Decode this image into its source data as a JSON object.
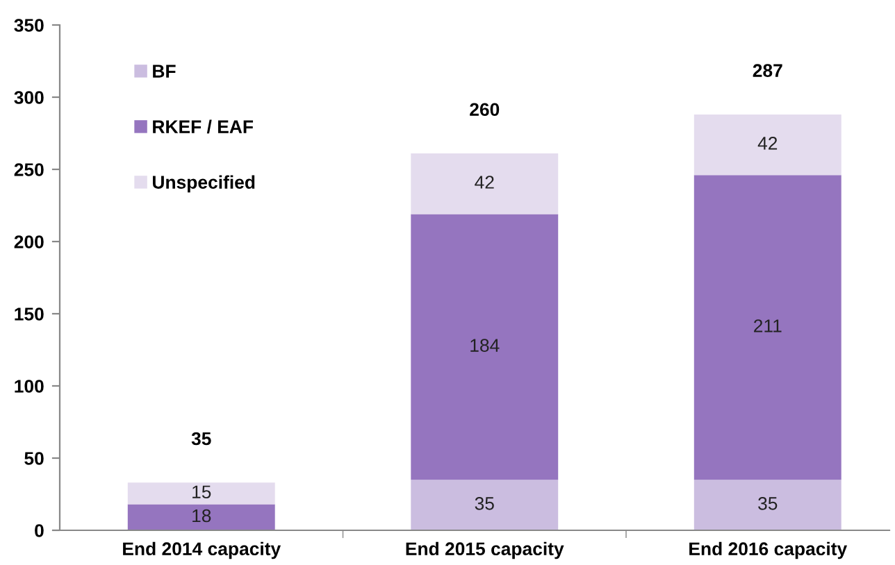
{
  "chart_data": {
    "type": "bar",
    "stacked": true,
    "categories": [
      "End 2014 capacity",
      "End 2015 capacity",
      "End 2016 capacity"
    ],
    "series": [
      {
        "name": "BF",
        "color": "#cbbde0",
        "values": [
          0,
          35,
          35
        ],
        "value_labels": [
          null,
          "35",
          "35"
        ]
      },
      {
        "name": "RKEF / EAF",
        "color": "#9575bf",
        "values": [
          18,
          184,
          211
        ],
        "value_labels": [
          "18",
          "184",
          "211"
        ]
      },
      {
        "name": "Unspecified",
        "color": "#e4dcee",
        "values": [
          15,
          42,
          42
        ],
        "value_labels": [
          "15",
          "42",
          "42"
        ]
      }
    ],
    "totals": [
      "35",
      "260",
      "287"
    ],
    "ylim": [
      0,
      350
    ],
    "yticks": [
      0,
      50,
      100,
      150,
      200,
      250,
      300,
      350
    ],
    "grid": false,
    "legend": "top left"
  }
}
